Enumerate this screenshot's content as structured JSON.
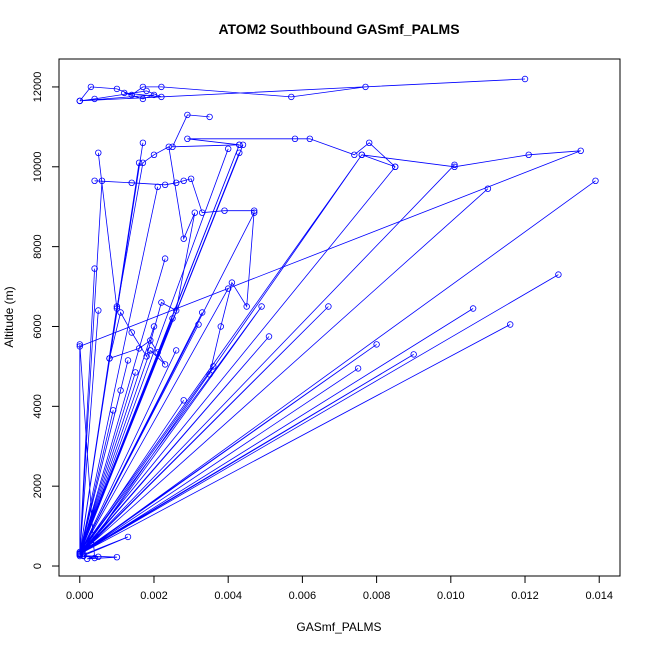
{
  "chart_data": {
    "type": "line",
    "title": "ATOM2 Southbound GASmf_PALMS",
    "xlabel": "GASmf_PALMS",
    "ylabel": "Altitude (m)",
    "xlim": [
      -0.00056,
      0.01456
    ],
    "ylim": [
      -250,
      12700
    ],
    "xticks": [
      0.0,
      0.002,
      0.004,
      0.006,
      0.008,
      0.01,
      0.012,
      0.014
    ],
    "xtick_labels": [
      "0.000",
      "0.002",
      "0.004",
      "0.006",
      "0.008",
      "0.010",
      "0.012",
      "0.014"
    ],
    "yticks": [
      0,
      2000,
      4000,
      6000,
      8000,
      10000,
      12000
    ],
    "ytick_labels": [
      "0",
      "2000",
      "4000",
      "6000",
      "8000",
      "10000",
      "12000"
    ],
    "grid": false,
    "legend": "none",
    "series_style": {
      "color": "#0000ff",
      "marker": "open-circle",
      "line": "solid"
    },
    "series": [
      {
        "x": [
          0.0,
          0.0075,
          0.0,
          0.0049,
          0.0001,
          0.0076,
          0.0,
          0.0043,
          0.0,
          0.004,
          0.0,
          0.0051,
          0.0,
          0.0067,
          0.0,
          0.008,
          0.0,
          0.009,
          0.0,
          0.0085,
          0.0,
          0.0106,
          0.0,
          0.0116,
          0.0,
          0.0129,
          0.0,
          0.0139,
          0.0,
          0.0101,
          0.0,
          0.011,
          0.0,
          0.0044,
          0.0,
          0.0043,
          0.0,
          0.0047,
          0.0,
          0.004,
          0.0,
          0.0036,
          0.0,
          0.0033,
          0.0,
          0.0032,
          0.0,
          0.0028,
          0.0,
          0.0026,
          0.0,
          0.0025,
          0.0,
          0.0023,
          0.0,
          0.0021,
          0.0,
          0.002,
          0.0,
          0.0019,
          0.0,
          0.0017,
          0.0,
          0.0016,
          0.0,
          0.0015,
          0.0,
          0.0013,
          0.0,
          0.0011,
          0.0,
          0.001,
          0.0,
          0.0009,
          0.0,
          0.0008,
          0.0,
          0.0006,
          0.0,
          0.0005,
          0.0,
          0.0004,
          0.0,
          0.0,
          0.0004,
          0.0001,
          0.0005,
          0.0002,
          0.001,
          0.0001,
          0.0013,
          0.0
        ],
        "y": [
          300,
          4950,
          300,
          6500,
          300,
          10300,
          350,
          10550,
          300,
          10450,
          300,
          5750,
          280,
          6500,
          300,
          5550,
          320,
          5300,
          300,
          10000,
          300,
          6450,
          300,
          6050,
          300,
          7300,
          300,
          9650,
          300,
          10050,
          300,
          9450,
          300,
          10550,
          300,
          10350,
          300,
          8850,
          300,
          6950,
          300,
          5000,
          300,
          6350,
          300,
          6050,
          300,
          4150,
          300,
          5400,
          300,
          6200,
          300,
          7700,
          300,
          9500,
          300,
          6000,
          300,
          5400,
          300,
          10600,
          300,
          10100,
          300,
          4850,
          300,
          5150,
          300,
          4400,
          300,
          6500,
          300,
          3900,
          300,
          5200,
          300,
          9650,
          300,
          6400,
          300,
          7450,
          300,
          5550,
          200,
          250,
          230,
          180,
          220,
          260,
          730,
          250
        ]
      },
      {
        "x": [
          0.0,
          0.0003,
          0.001,
          0.0014,
          0.0017,
          0.0022,
          0.0057,
          0.0077,
          0.012,
          0.0,
          0.0004,
          0.0018,
          0.0022,
          0.0012,
          0.0017,
          0.002,
          0.0
        ],
        "y": [
          11650,
          12000,
          11950,
          11800,
          12000,
          12000,
          11750,
          12000,
          12200,
          11650,
          11700,
          11900,
          11750,
          11850,
          11700,
          11800,
          11650
        ]
      },
      {
        "x": [
          0.0035,
          0.0029,
          0.0025,
          0.0043,
          0.0029,
          0.0058,
          0.0062,
          0.0074,
          0.0078,
          0.0085,
          0.0076,
          0.0101,
          0.0121,
          0.0135,
          0.0
        ],
        "y": [
          11250,
          11300,
          10500,
          10550,
          10700,
          10700,
          10700,
          10300,
          10600,
          10000,
          10300,
          10000,
          10300,
          10400,
          5500
        ]
      },
      {
        "x": [
          0.0004,
          0.0014,
          0.0023,
          0.0026,
          0.0028,
          0.003,
          0.0033,
          0.0039,
          0.0047,
          0.0045,
          0.0041,
          0.0038,
          0.0035
        ],
        "y": [
          9650,
          9600,
          9550,
          9600,
          9650,
          9700,
          8850,
          8900,
          8900,
          6500,
          7100,
          6000,
          4800
        ]
      },
      {
        "x": [
          0.0005,
          0.001,
          0.0017,
          0.002,
          0.0024,
          0.0028,
          0.0031,
          0.0026,
          0.0022,
          0.0018,
          0.0014,
          0.0011,
          0.0008,
          0.0016,
          0.0019,
          0.0021,
          0.0023,
          0.0019
        ],
        "y": [
          10350,
          6450,
          10100,
          10300,
          10500,
          8200,
          8850,
          6400,
          6600,
          5250,
          5850,
          6350,
          5200,
          5450,
          5650,
          5350,
          5050,
          5400
        ]
      }
    ]
  }
}
